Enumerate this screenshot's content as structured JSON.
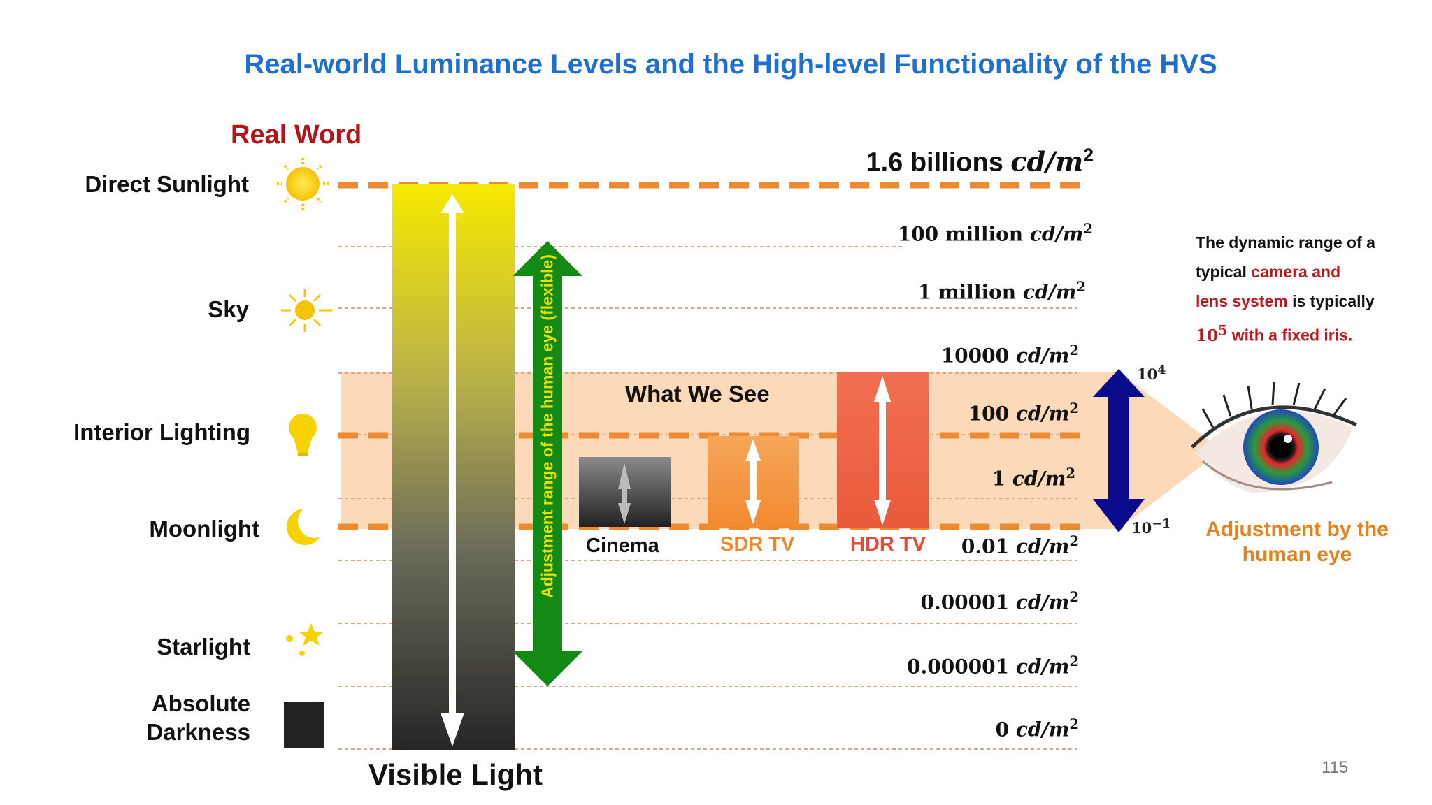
{
  "title": "Real-world Luminance Levels and the High-level Functionality of the HVS",
  "real_word_label": "Real Word",
  "categories": {
    "direct_sunlight": "Direct Sunlight",
    "sky": "Sky",
    "interior_lighting": "Interior Lighting",
    "moonlight": "Moonlight",
    "starlight": "Starlight",
    "absolute_darkness_line1": "Absolute",
    "absolute_darkness_line2": "Darkness"
  },
  "luminance_levels": {
    "l0": {
      "value": "1.6 billions",
      "unit": "cd/m",
      "exp": "2"
    },
    "l1": {
      "value": "100 million",
      "unit": "cd/m",
      "exp": "2"
    },
    "l2": {
      "value": "1 million",
      "unit": "cd/m",
      "exp": "2"
    },
    "l3": {
      "value": "10000",
      "unit": "cd/m",
      "exp": "2"
    },
    "l4": {
      "value": "100",
      "unit": "cd/m",
      "exp": "2"
    },
    "l5": {
      "value": "1",
      "unit": "cd/m",
      "exp": "2"
    },
    "l6": {
      "value": "0.01",
      "unit": "cd/m",
      "exp": "2"
    },
    "l7": {
      "value": "0.00001",
      "unit": "cd/m",
      "exp": "2"
    },
    "l8": {
      "value": "0.000001",
      "unit": "cd/m",
      "exp": "2"
    },
    "l9": {
      "value": "0",
      "unit": "cd/m",
      "exp": "2"
    }
  },
  "vertical_label": "Adjustment range of the human eye (flexible)",
  "what_we_see": "What We See",
  "devices": {
    "cinema": "Cinema",
    "sdr_tv": "SDR TV",
    "hdr_tv": "HDR TV"
  },
  "eye_range": {
    "top_base": "10",
    "top_exp": "4",
    "bottom_base": "10",
    "bottom_exp": "−1"
  },
  "note": {
    "part1": "The dynamic range of a typical ",
    "part2": "camera and lens system",
    "part3": " is typically ",
    "power_base": "10",
    "power_exp": "5",
    "part4": " with a fixed iris."
  },
  "adjustment_label_line1": "Adjustment by the",
  "adjustment_label_line2": "human eye",
  "visible_light": "Visible Light",
  "page_number": "115",
  "colors": {
    "title": "#1f6fd1",
    "real_word": "#b3161a",
    "dashed_line": "#ee8a30",
    "green_arrow": "#138a14",
    "blue_arrow": "#0a0a8c",
    "sdr": "#f0882a",
    "hdr": "#e84a3a",
    "adjust": "#e6821e"
  },
  "icons": [
    "sun-icon",
    "sky-sun-icon",
    "light-bulb-icon",
    "moon-icon",
    "stars-icon",
    "darkness-square-icon",
    "human-eye-icon"
  ]
}
